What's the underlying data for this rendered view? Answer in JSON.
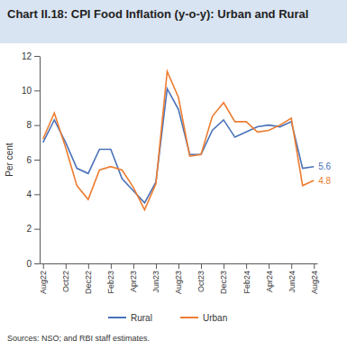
{
  "chart_data": {
    "type": "line",
    "title": "Chart II.18: CPI Food Inflation (y-o-y): Urban and Rural",
    "y_label": "Per cent",
    "source": "Sources: NSO; and RBI staff estimates.",
    "categories": [
      "Aug22",
      null,
      "Oct22",
      null,
      "Dec22",
      null,
      "Feb23",
      null,
      "Apr23",
      null,
      "Jun23",
      null,
      "Aug23",
      null,
      "Oct23",
      null,
      "Dec23",
      null,
      "Feb24",
      null,
      "Apr24",
      null,
      "Jun24",
      null,
      "Aug24"
    ],
    "series": [
      {
        "name": "Rural",
        "color": "#4a72b8",
        "values": [
          7.0,
          8.3,
          7.0,
          5.5,
          5.2,
          6.6,
          6.6,
          4.9,
          4.2,
          3.5,
          4.7,
          10.1,
          8.9,
          6.3,
          6.3,
          7.7,
          8.3,
          7.3,
          7.6,
          7.9,
          8.0,
          7.9,
          8.2,
          5.5,
          5.6
        ],
        "value_labels": [
          null,
          null,
          null,
          null,
          null,
          null,
          null,
          null,
          null,
          null,
          null,
          null,
          null,
          null,
          null,
          null,
          null,
          null,
          null,
          null,
          null,
          null,
          null,
          null,
          "5.6"
        ]
      },
      {
        "name": "Urban",
        "color": "#ed7d31",
        "values": [
          7.2,
          8.7,
          6.7,
          4.5,
          3.7,
          5.4,
          5.6,
          5.4,
          4.4,
          3.1,
          4.6,
          11.1,
          9.6,
          6.2,
          6.3,
          8.5,
          9.3,
          8.2,
          8.2,
          7.6,
          7.7,
          8.0,
          8.4,
          4.5,
          4.8
        ],
        "value_labels": [
          null,
          null,
          null,
          null,
          null,
          null,
          null,
          null,
          null,
          null,
          null,
          null,
          null,
          null,
          null,
          null,
          null,
          null,
          null,
          null,
          null,
          null,
          null,
          null,
          "4.8"
        ]
      }
    ],
    "ylim": [
      0,
      12
    ],
    "yticks": [
      0,
      2,
      4,
      6,
      8,
      10,
      12
    ],
    "grid": false,
    "legend": "bottom",
    "marker": "none",
    "line_style": "solid"
  }
}
